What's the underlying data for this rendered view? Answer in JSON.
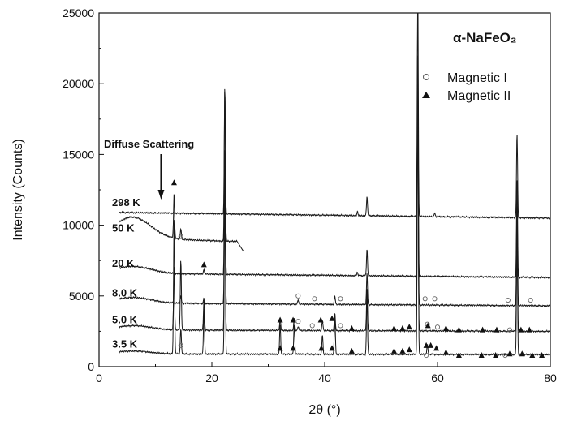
{
  "chart_data": {
    "type": "line",
    "title": "α-NaFeO₂",
    "xlabel": "2θ (°)",
    "ylabel": "Intensity (Counts)",
    "xlim": [
      0,
      80
    ],
    "ylim": [
      0,
      25000
    ],
    "xticks": [
      "0",
      "20",
      "40",
      "60",
      "80"
    ],
    "yticks": [
      "0",
      "5000",
      "10000",
      "15000",
      "20000",
      "25000"
    ],
    "grid": false,
    "legend_position": "top-right",
    "legend": [
      {
        "name": "Magnetic I",
        "marker": "open-circle"
      },
      {
        "name": "Magnetic II",
        "marker": "filled-triangle"
      }
    ],
    "annotation": "Diffuse Scattering",
    "annotation_x": 11,
    "peak_positions": [
      13.3,
      14.5,
      18.6,
      22.3,
      32.1,
      34.6,
      39.6,
      41.8,
      47.5,
      56.5,
      58.2,
      74.1
    ],
    "series": [
      {
        "name": "298 K",
        "baseline": 10900,
        "end": 10500,
        "hump": 0,
        "peaks": [
          [
            22.3,
            9000
          ],
          [
            45.8,
            300
          ],
          [
            47.5,
            1400
          ],
          [
            56.5,
            16000
          ],
          [
            59.5,
            250
          ],
          [
            74.1,
            6000
          ]
        ]
      },
      {
        "name": "50 K",
        "baseline": 9100,
        "end": 8200,
        "hump": 1500,
        "peaks": [
          [
            13.3,
            3200
          ],
          [
            14.5,
            700
          ],
          [
            22.3,
            10800
          ]
        ]
      },
      {
        "name": "20 K",
        "baseline": 6600,
        "end": 6300,
        "hump": 500,
        "peaks": [
          [
            18.6,
            350
          ],
          [
            22.3,
            9000
          ],
          [
            45.8,
            250
          ],
          [
            47.5,
            1900
          ],
          [
            56.5,
            16000
          ],
          [
            74.1,
            7000
          ]
        ]
      },
      {
        "name": "8.0 K",
        "baseline": 4500,
        "end": 4300,
        "hump": 400,
        "peaks": [
          [
            14.5,
            500
          ],
          [
            18.6,
            400
          ],
          [
            22.3,
            10000
          ],
          [
            35.3,
            300
          ],
          [
            41.8,
            600
          ],
          [
            47.5,
            2200
          ],
          [
            56.5,
            16000
          ],
          [
            74.1,
            7200
          ]
        ]
      },
      {
        "name": "5.0 K",
        "baseline": 2600,
        "end": 2500,
        "hump": 300,
        "peaks": [
          [
            13.3,
            4500
          ],
          [
            14.5,
            5000
          ],
          [
            18.6,
            2200
          ],
          [
            22.3,
            11000
          ],
          [
            32.1,
            800
          ],
          [
            34.6,
            900
          ],
          [
            35.3,
            300
          ],
          [
            39.6,
            700
          ],
          [
            41.8,
            1300
          ],
          [
            47.5,
            3000
          ],
          [
            56.5,
            16000
          ],
          [
            74.1,
            7500
          ]
        ]
      },
      {
        "name": "3.5 K",
        "baseline": 900,
        "end": 850,
        "hump": 200,
        "peaks": [
          [
            13.3,
            9700
          ],
          [
            14.5,
            1800
          ],
          [
            18.6,
            3200
          ],
          [
            22.3,
            12000
          ],
          [
            32.1,
            2100
          ],
          [
            34.6,
            2100
          ],
          [
            39.6,
            1400
          ],
          [
            41.8,
            2800
          ],
          [
            47.5,
            4200
          ],
          [
            56.5,
            20000
          ],
          [
            58.2,
            700
          ],
          [
            74.1,
            8000
          ]
        ]
      }
    ],
    "magnetic_I_markers": [
      [
        14.5,
        1500
      ],
      [
        14.5,
        9200
      ],
      [
        35.3,
        5000
      ],
      [
        38.2,
        4800
      ],
      [
        42.8,
        4800
      ],
      [
        57.8,
        4800
      ],
      [
        59.5,
        4800
      ],
      [
        72.5,
        4700
      ],
      [
        76.5,
        4700
      ],
      [
        35.3,
        3200
      ],
      [
        37.8,
        2900
      ],
      [
        42.8,
        2900
      ],
      [
        58.2,
        3000
      ],
      [
        60.0,
        2800
      ],
      [
        72.8,
        2600
      ],
      [
        58.0,
        800
      ],
      [
        72.0,
        800
      ]
    ],
    "magnetic_II_markers": [
      [
        13.3,
        13000
      ],
      [
        18.6,
        7200
      ],
      [
        32.1,
        3300
      ],
      [
        34.4,
        3300
      ],
      [
        39.3,
        3300
      ],
      [
        41.3,
        3400
      ],
      [
        44.8,
        2700
      ],
      [
        52.3,
        2700
      ],
      [
        53.8,
        2700
      ],
      [
        55.0,
        2800
      ],
      [
        58.3,
        2900
      ],
      [
        61.5,
        2700
      ],
      [
        63.8,
        2600
      ],
      [
        68.0,
        2600
      ],
      [
        70.5,
        2600
      ],
      [
        74.8,
        2600
      ],
      [
        76.3,
        2600
      ],
      [
        32.1,
        1300
      ],
      [
        34.4,
        1300
      ],
      [
        39.4,
        1300
      ],
      [
        41.3,
        1300
      ],
      [
        44.8,
        1100
      ],
      [
        52.3,
        1100
      ],
      [
        53.8,
        1100
      ],
      [
        55.0,
        1200
      ],
      [
        58.0,
        1500
      ],
      [
        58.8,
        1500
      ],
      [
        59.8,
        1300
      ],
      [
        61.5,
        1000
      ],
      [
        63.8,
        800
      ],
      [
        67.8,
        800
      ],
      [
        70.3,
        800
      ],
      [
        72.8,
        900
      ],
      [
        75.0,
        900
      ],
      [
        76.8,
        800
      ],
      [
        78.5,
        800
      ]
    ]
  }
}
